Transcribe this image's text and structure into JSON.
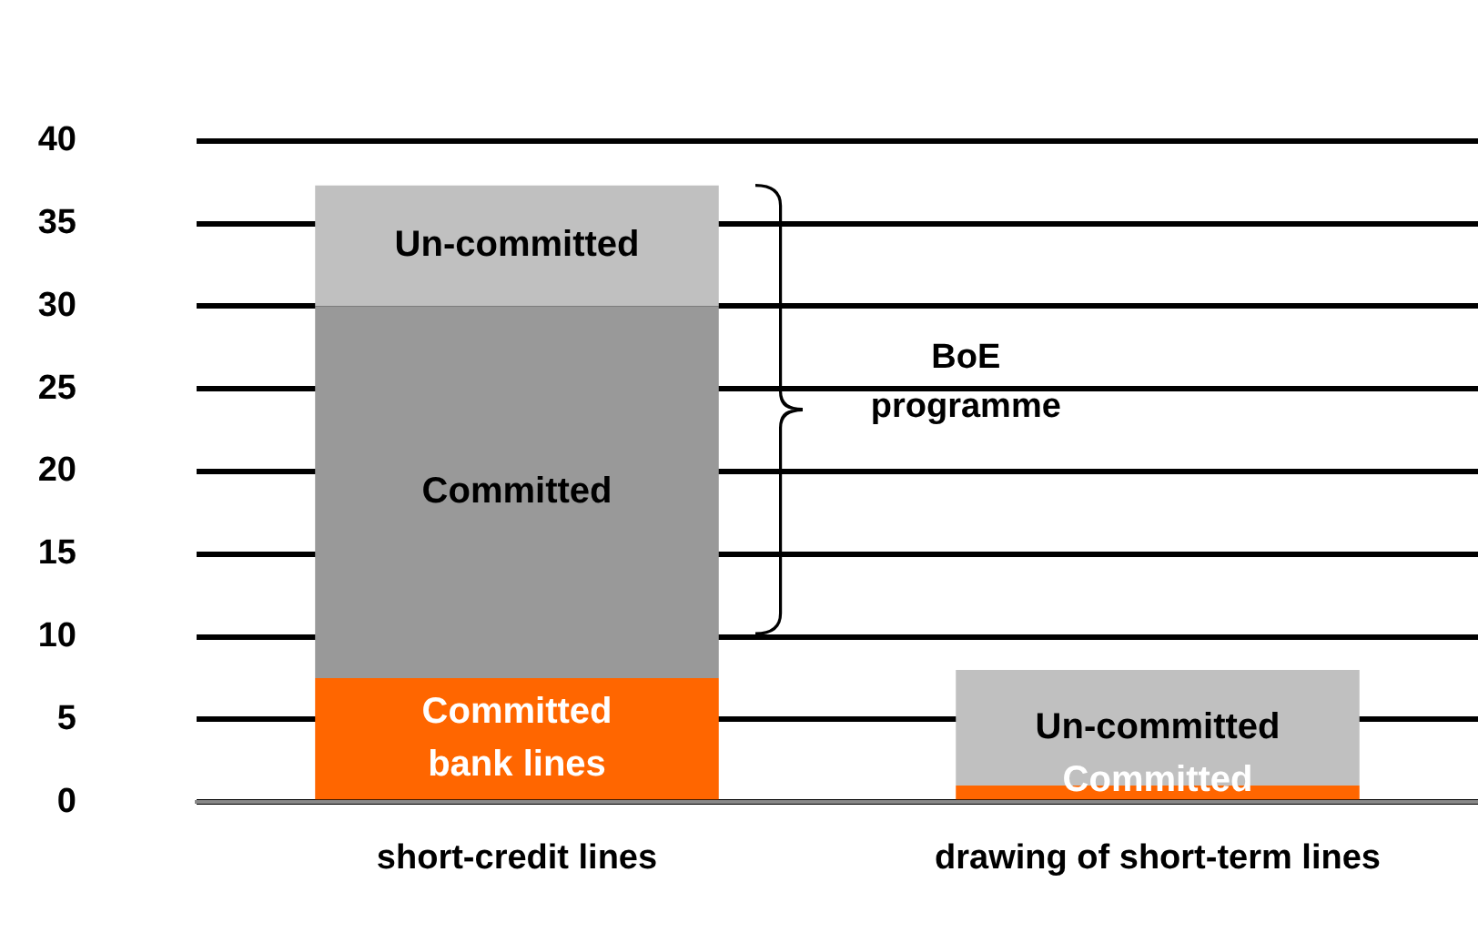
{
  "chart_data": {
    "type": "bar",
    "stacked": true,
    "categories": [
      "short-credit lines",
      "drawing of short-term lines"
    ],
    "series": [
      {
        "color": "#ff6600",
        "values": [
          7.5,
          1
        ],
        "value_labels": [
          "Committed\nbank lines",
          "Committed"
        ]
      },
      {
        "color": "#999999",
        "values": [
          22.5,
          0
        ],
        "value_labels": [
          "Committed",
          null
        ]
      },
      {
        "color": "#c0c0c0",
        "values": [
          7.3,
          7
        ],
        "value_labels": [
          "Un-committed",
          "Un-committed"
        ]
      }
    ],
    "ylim": [
      0,
      40
    ],
    "yticks": [
      0,
      5,
      10,
      15,
      20,
      25,
      30,
      35,
      40
    ],
    "grid": "y",
    "legend": false,
    "annotations": [
      "BoE\nprogramme"
    ]
  }
}
